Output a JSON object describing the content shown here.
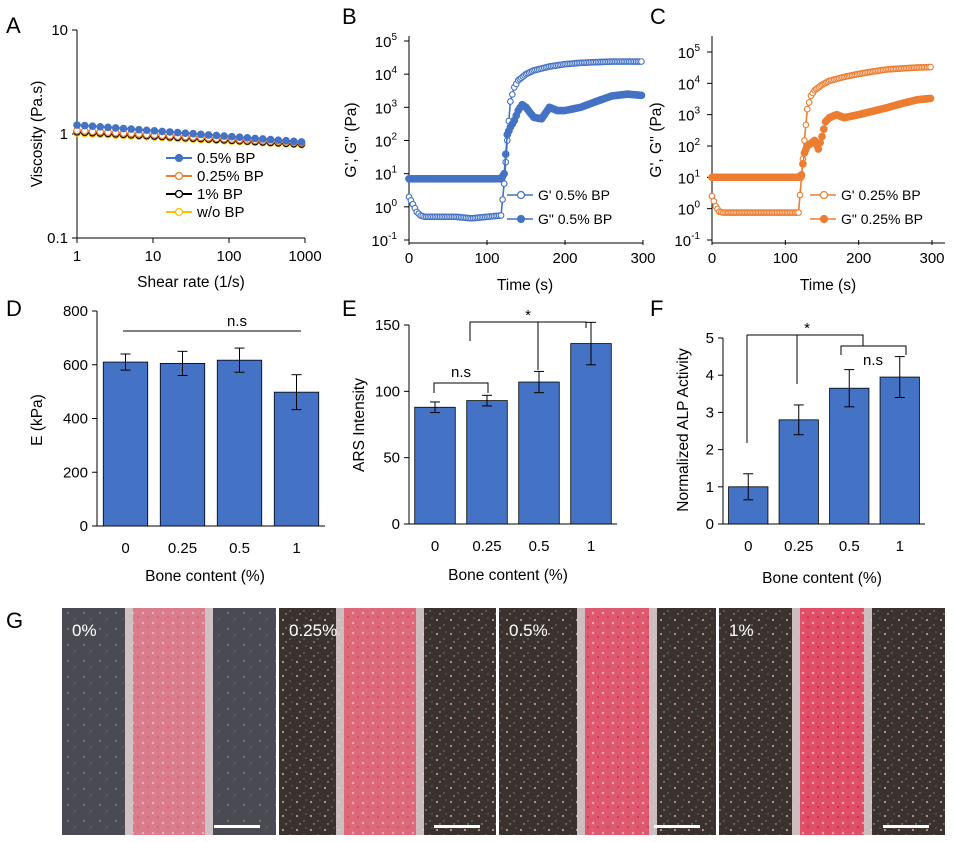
{
  "colors": {
    "blue": "#4472c4",
    "bar_blue": "#4472c4",
    "orange": "#ed7d31",
    "black": "#000000",
    "yellow": "#ffc000",
    "gray": "#808080"
  },
  "chart_data": [
    {
      "id": "A",
      "panel_letter": "A",
      "type": "line",
      "xlabel": "Shear rate (1/s)",
      "ylabel": "Viscosity (Pa.s)",
      "x_scale": "log",
      "y_scale": "log",
      "xlim": [
        1,
        1000
      ],
      "ylim": [
        0.1,
        10
      ],
      "x_ticks": [
        "1",
        "10",
        "100",
        "1000"
      ],
      "y_ticks": [
        "0.1",
        "1",
        "10"
      ],
      "legend_position": "bottom-right",
      "series": [
        {
          "name": "0.5% BP",
          "color": "#4472c4",
          "marker": "filled-circle",
          "x_range": [
            1,
            900
          ],
          "y_start": 1.22,
          "y_end": 0.84
        },
        {
          "name": "0.25% BP",
          "color": "#ed7d31",
          "marker": "open-circle",
          "x_range": [
            1,
            900
          ],
          "y_start": 1.08,
          "y_end": 0.82
        },
        {
          "name": "1% BP",
          "color": "#000000",
          "marker": "open-circle",
          "x_range": [
            1,
            900
          ],
          "y_start": 1.05,
          "y_end": 0.8
        },
        {
          "name": "w/o BP",
          "color": "#ffc000",
          "marker": "open-circle",
          "x_range": [
            1,
            900
          ],
          "y_start": 1.02,
          "y_end": 0.79
        }
      ]
    },
    {
      "id": "B",
      "panel_letter": "B",
      "type": "line",
      "xlabel": "Time (s)",
      "ylabel": "G', G'' (Pa)",
      "y_scale": "log",
      "xlim": [
        0,
        300
      ],
      "ylim": [
        0.1,
        100000
      ],
      "x_ticks": [
        "0",
        "100",
        "200",
        "300"
      ],
      "y_tick_mantissa": "10",
      "y_tick_exponents": [
        "-1",
        "0",
        "1",
        "2",
        "3",
        "4",
        "5"
      ],
      "legend_position": "bottom-right",
      "series": [
        {
          "name": "G' 0.5% BP",
          "color": "#4472c4",
          "marker": "open-circle",
          "x": [
            0,
            5,
            10,
            15,
            20,
            40,
            60,
            80,
            100,
            118,
            122,
            126,
            130,
            135,
            140,
            150,
            160,
            180,
            200,
            220,
            240,
            260,
            280,
            298
          ],
          "y": [
            2,
            1.2,
            0.7,
            0.55,
            0.5,
            0.5,
            0.5,
            0.45,
            0.5,
            0.55,
            5,
            100,
            1500,
            4000,
            6500,
            10000,
            13000,
            17000,
            20000,
            22000,
            23000,
            24000,
            24000,
            24000
          ]
        },
        {
          "name": "G\" 0.5% BP",
          "color": "#4472c4",
          "marker": "filled-circle",
          "x": [
            0,
            40,
            80,
            118,
            122,
            126,
            130,
            135,
            140,
            145,
            150,
            155,
            160,
            170,
            180,
            190,
            200,
            220,
            240,
            260,
            280,
            298
          ],
          "y": [
            7,
            7,
            7,
            7,
            10,
            150,
            250,
            400,
            800,
            1200,
            1000,
            700,
            500,
            450,
            1000,
            800,
            800,
            1000,
            1500,
            2200,
            2500,
            2300
          ]
        }
      ]
    },
    {
      "id": "C",
      "panel_letter": "C",
      "type": "line",
      "xlabel": "Time (s)",
      "ylabel": "G', G'' (Pa)",
      "y_scale": "log",
      "xlim": [
        0,
        300
      ],
      "ylim": [
        0.1,
        100000
      ],
      "x_ticks": [
        "0",
        "100",
        "200",
        "300"
      ],
      "y_tick_mantissa": "10",
      "y_tick_exponents": [
        "-1",
        "0",
        "1",
        "2",
        "3",
        "4",
        "5"
      ],
      "legend_position": "bottom-right",
      "series": [
        {
          "name": "G' 0.25% BP",
          "color": "#ed7d31",
          "marker": "open-circle",
          "x": [
            0,
            5,
            10,
            15,
            20,
            50,
            80,
            100,
            118,
            122,
            126,
            130,
            135,
            140,
            150,
            160,
            180,
            200,
            220,
            240,
            260,
            280,
            298
          ],
          "y": [
            2.5,
            1.2,
            0.8,
            0.75,
            0.75,
            0.75,
            0.75,
            0.75,
            0.75,
            10,
            150,
            1500,
            4000,
            6000,
            9000,
            12000,
            16000,
            20000,
            24000,
            28000,
            30000,
            32000,
            33000
          ]
        },
        {
          "name": "G\" 0.25% BP",
          "color": "#ed7d31",
          "marker": "filled-circle",
          "x": [
            0,
            40,
            80,
            118,
            122,
            126,
            130,
            140,
            145,
            150,
            155,
            160,
            170,
            180,
            200,
            220,
            240,
            260,
            280,
            298
          ],
          "y": [
            10,
            10,
            10,
            10,
            12,
            60,
            100,
            150,
            80,
            200,
            600,
            800,
            1000,
            800,
            1000,
            1300,
            1700,
            2300,
            3000,
            3300
          ]
        }
      ]
    },
    {
      "id": "D",
      "panel_letter": "D",
      "type": "bar",
      "xlabel": "Bone content (%)",
      "ylabel": "E (kPa)",
      "categories": [
        "0",
        "0.25",
        "0.5",
        "1"
      ],
      "values": [
        610,
        605,
        617,
        498
      ],
      "errors": [
        30,
        45,
        45,
        65
      ],
      "ylim": [
        0,
        800
      ],
      "y_ticks": [
        "0",
        "200",
        "400",
        "600",
        "800"
      ],
      "annotations": [
        "n.s"
      ]
    },
    {
      "id": "E",
      "panel_letter": "E",
      "type": "bar",
      "xlabel": "Bone content (%)",
      "ylabel": "ARS Intensity",
      "categories": [
        "0",
        "0.25",
        "0.5",
        "1"
      ],
      "values": [
        88,
        93,
        107,
        136
      ],
      "errors": [
        4,
        4,
        8,
        16
      ],
      "ylim": [
        0,
        150
      ],
      "y_ticks": [
        "0",
        "50",
        "100",
        "150"
      ],
      "annotations": [
        "n.s",
        "*"
      ]
    },
    {
      "id": "F",
      "panel_letter": "F",
      "type": "bar",
      "xlabel": "Bone content (%)",
      "ylabel": "Normalized ALP Activity",
      "categories": [
        "0",
        "0.25",
        "0.5",
        "1"
      ],
      "values": [
        1.0,
        2.8,
        3.65,
        3.95
      ],
      "errors": [
        0.35,
        0.4,
        0.5,
        0.55
      ],
      "ylim": [
        0,
        5
      ],
      "y_ticks": [
        "0",
        "1",
        "2",
        "3",
        "4",
        "5"
      ],
      "annotations": [
        "*",
        "n.s"
      ]
    }
  ],
  "panel_g": {
    "panel_letter": "G",
    "images": [
      {
        "label": "0%",
        "stain_intensity": 0.35
      },
      {
        "label": "0.25%",
        "stain_intensity": 0.6
      },
      {
        "label": "0.5%",
        "stain_intensity": 0.8
      },
      {
        "label": "1%",
        "stain_intensity": 0.95
      }
    ]
  }
}
